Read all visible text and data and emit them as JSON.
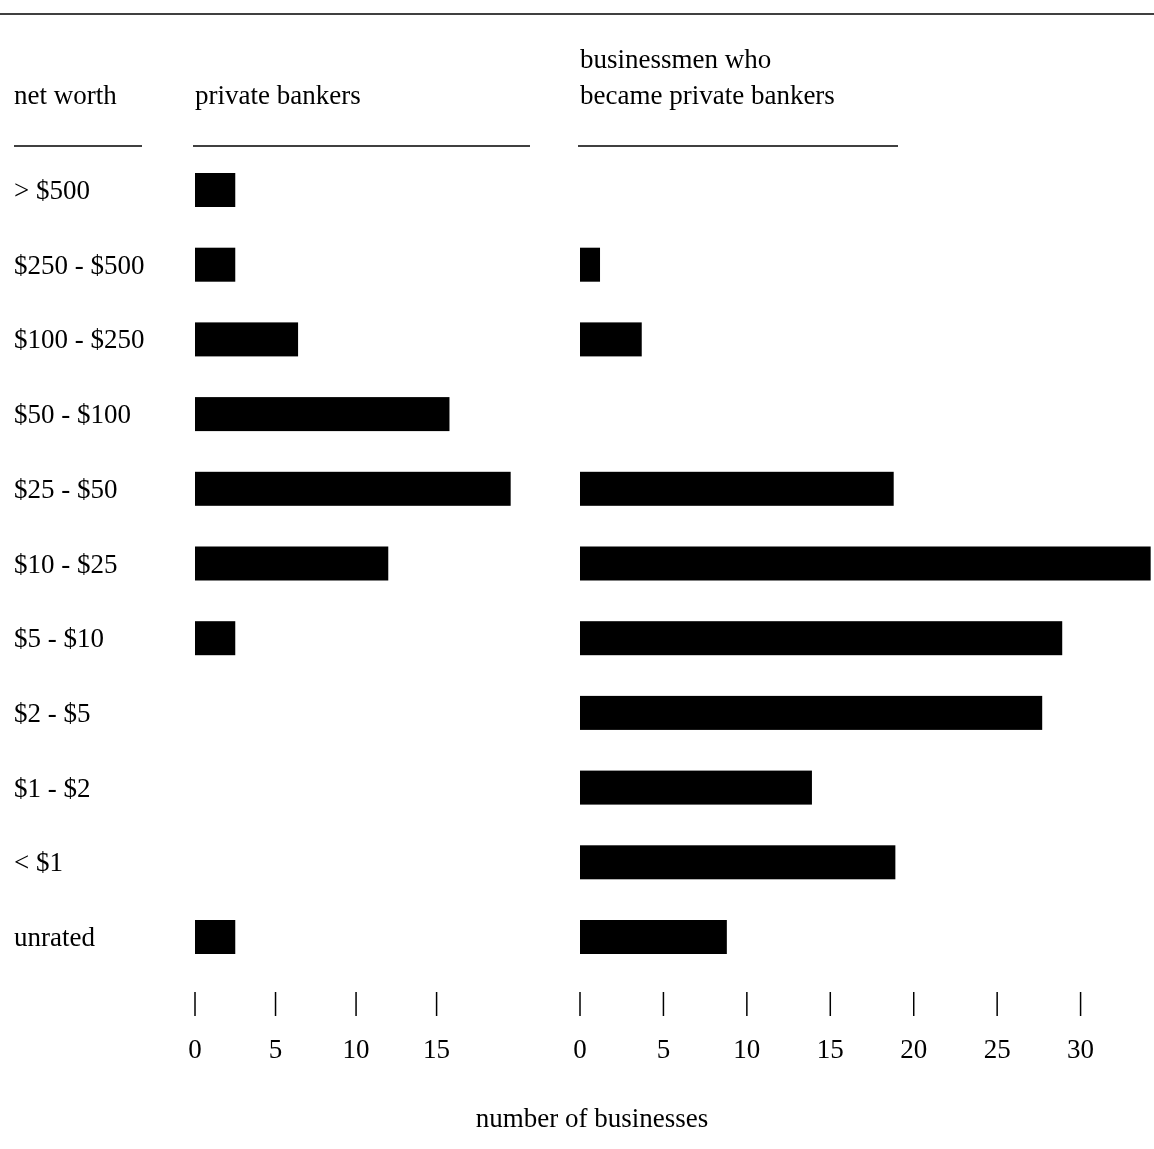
{
  "chart_data": [
    {
      "type": "bar",
      "orientation": "horizontal",
      "title": "private bankers",
      "ylabel": "net worth",
      "xlabel": "number of businesses",
      "categories": [
        "> $500",
        "$250 - $500",
        "$100 - $250",
        "$50 - $100",
        "$25 - $50",
        "$10 - $25",
        "$5 - $10",
        "$2 - $5",
        "$1 - $2",
        "< $1",
        "unrated"
      ],
      "values": [
        2.5,
        2.5,
        6.4,
        15.8,
        19.6,
        12,
        2.5,
        null,
        null,
        null,
        2.5
      ],
      "color": "#000000",
      "xlim": [
        0,
        20.8
      ],
      "xticks": [
        0,
        5,
        10,
        15
      ],
      "grid": false
    },
    {
      "type": "bar",
      "orientation": "horizontal",
      "title": "businessmen who became private bankers",
      "categories": [
        null,
        null,
        null,
        null,
        null,
        null,
        null,
        null,
        null,
        null,
        null
      ],
      "values": [
        null,
        1.2,
        3.7,
        null,
        18.8,
        34.2,
        28.9,
        27.7,
        13.9,
        18.9,
        8.8
      ],
      "color": "#000000",
      "xlim": [
        0,
        34.4
      ],
      "xticks": [
        0,
        5,
        10,
        15,
        20,
        25,
        30
      ],
      "tick_labels": "x",
      "grid": false
    }
  ]
}
